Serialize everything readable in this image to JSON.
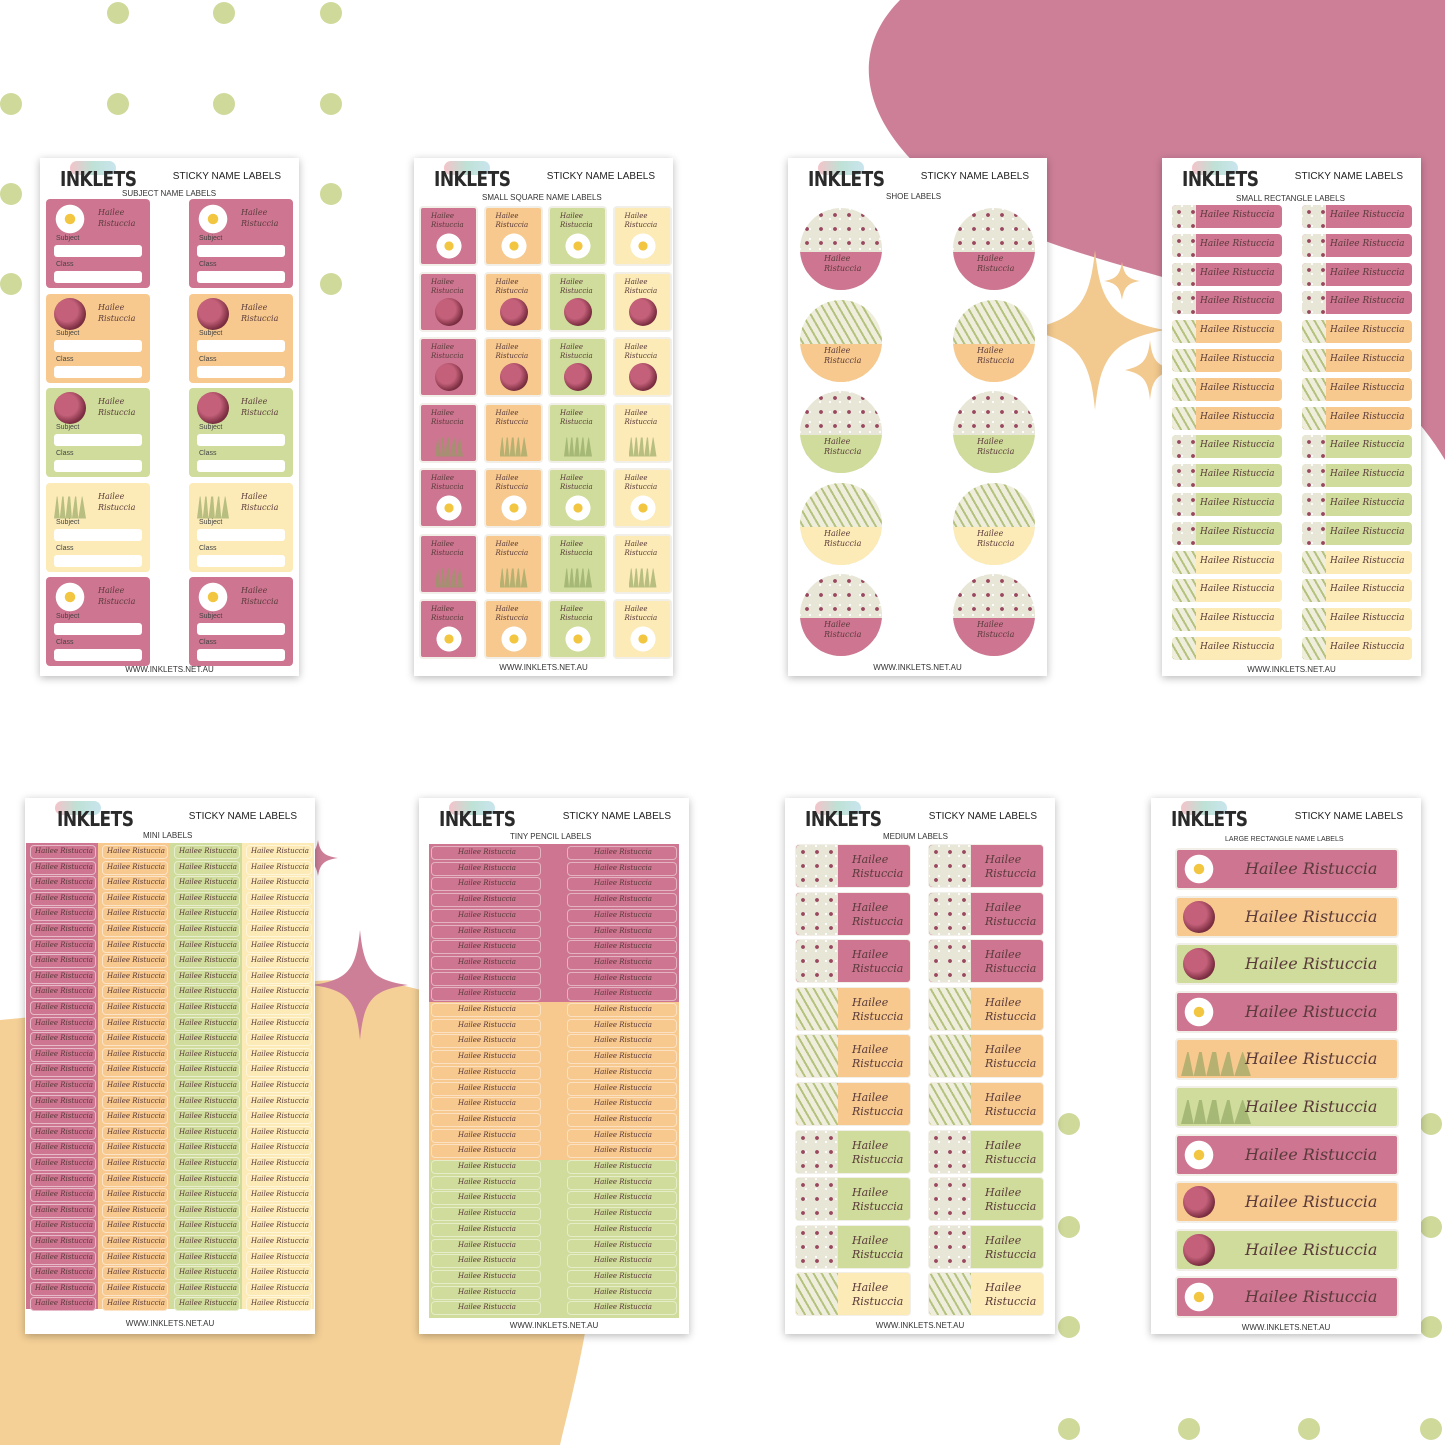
{
  "brand": "INKLETS",
  "product_title": "STICKY NAME LABELS",
  "footer_url": "WWW.INKLETS.NET.AU",
  "name": "Hailee Ristuccia",
  "colors": {
    "pink": "#cd7591",
    "peach": "#f7c98e",
    "green": "#cfdc9b",
    "cream": "#fcebb7",
    "blob_pink": "#cd7f98",
    "blob_peach": "#f4d096",
    "dot": "#cfd99a",
    "sparkle": "#f2c98e"
  },
  "fields": {
    "subject": "Subject",
    "class": "Class"
  },
  "sheets": [
    {
      "title": "STICKY NAME LABELS",
      "subtitle": "SUBJECT NAME LABELS",
      "footer": "WWW.INKLETS.NET.AU"
    },
    {
      "title": "STICKY NAME LABELS",
      "subtitle": "SMALL SQUARE NAME LABELS",
      "footer": "WWW.INKLETS.NET.AU"
    },
    {
      "title": "STICKY NAME LABELS",
      "subtitle": "SHOE LABELS",
      "footer": "WWW.INKLETS.NET.AU"
    },
    {
      "title": "STICKY NAME LABELS",
      "subtitle": "SMALL RECTANGLE LABELS",
      "footer": "WWW.INKLETS.NET.AU"
    },
    {
      "title": "STICKY NAME LABELS",
      "subtitle": "MINI LABELS",
      "footer": "WWW.INKLETS.NET.AU"
    },
    {
      "title": "STICKY NAME LABELS",
      "subtitle": "TINY PENCIL LABELS",
      "footer": "WWW.INKLETS.NET.AU"
    },
    {
      "title": "STICKY NAME LABELS",
      "subtitle": "MEDIUM LABELS",
      "footer": "WWW.INKLETS.NET.AU"
    },
    {
      "title": "STICKY NAME LABELS",
      "subtitle": "LARGE RECTANGLE NAME LABELS",
      "footer": "WWW.INKLETS.NET.AU"
    }
  ],
  "icons": [
    "daisy-icon",
    "ladybug-icon",
    "grass-icon",
    "sparkle-icon"
  ]
}
